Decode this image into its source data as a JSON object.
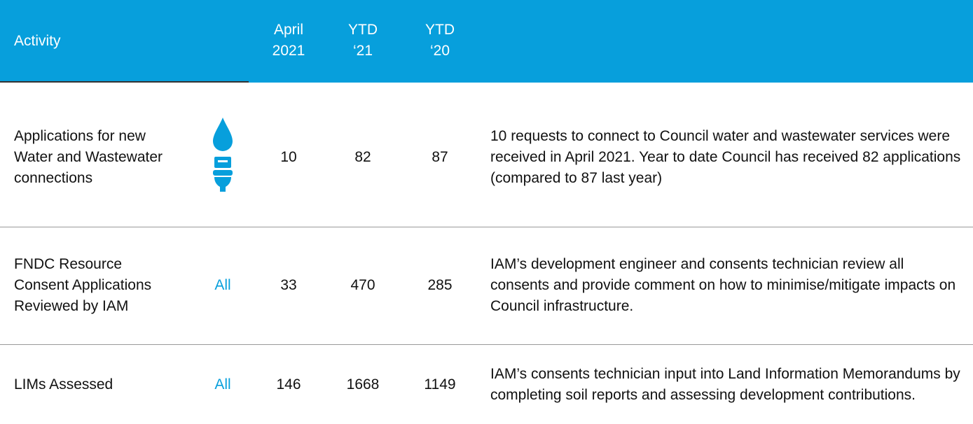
{
  "table": {
    "headers": {
      "activity": "Activity",
      "april": "April 2021",
      "ytd21": "YTD ‘21",
      "ytd20": "YTD ‘20"
    },
    "rows": [
      {
        "activity": "Applications for new Water and Wastewater connections",
        "april": 10,
        "ytd21": 82,
        "ytd20": 87,
        "description": "10 requests to connect to Council water and wastewater services were received in April 2021.  Year to date Council has received 82 applications (compared to 87 last year)"
      },
      {
        "activity": "FNDC Resource Consent Applications Reviewed by IAM",
        "scope": "All",
        "april": 33,
        "ytd21": 470,
        "ytd20": 285,
        "description": "IAM’s development engineer and consents technician review all consents and provide comment on how to minimise/mitigate impacts on Council infrastructure."
      },
      {
        "activity": "LIMs Assessed",
        "scope": "All",
        "april": 146,
        "ytd21": 1668,
        "ytd20": 1149,
        "description": "IAM’s consents technician input into Land Information Memorandums by completing soil reports and assessing development contributions."
      }
    ]
  }
}
